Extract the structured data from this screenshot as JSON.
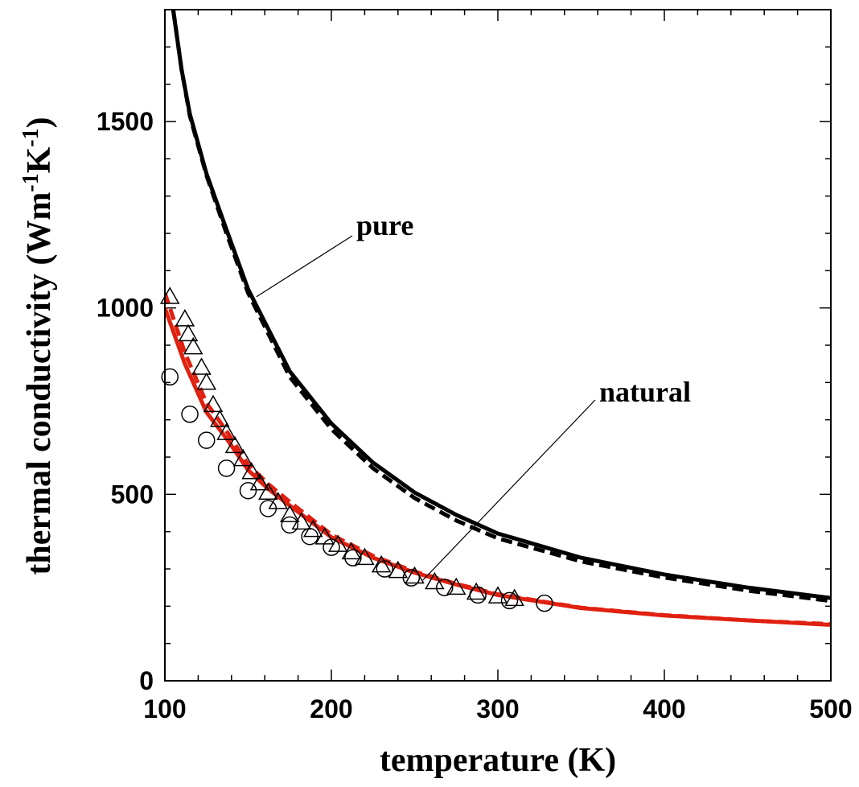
{
  "chart_data": {
    "type": "line",
    "xlabel": "temperature (K)",
    "ylabel": {
      "parts": [
        {
          "text": "thermal conductivity (Wm",
          "sup": false
        },
        {
          "text": "-1",
          "sup": true
        },
        {
          "text": "K",
          "sup": false
        },
        {
          "text": "-1",
          "sup": true
        },
        {
          "text": ")",
          "sup": false
        }
      ]
    },
    "xlim": [
      100,
      500
    ],
    "ylim": [
      0,
      1800
    ],
    "xticks": [
      100,
      200,
      300,
      400,
      500
    ],
    "yticks": [
      0,
      500,
      1000,
      1500
    ],
    "grid": false,
    "annotations": [
      {
        "text": "pure",
        "points_to": [
          155,
          1030
        ]
      },
      {
        "text": "natural",
        "points_to": [
          255,
          270
        ]
      }
    ],
    "series": [
      {
        "color": "#000000",
        "dash": false,
        "role": "pure",
        "x": [
          105,
          110,
          115,
          125,
          137,
          150,
          175,
          200,
          225,
          250,
          275,
          300,
          350,
          400,
          450,
          500
        ],
        "y": [
          1800,
          1640,
          1520,
          1360,
          1210,
          1050,
          830,
          690,
          585,
          505,
          445,
          395,
          330,
          285,
          250,
          222
        ]
      },
      {
        "color": "#000000",
        "dash": true,
        "role": "pure",
        "x": [
          105,
          110,
          115,
          125,
          137,
          150,
          175,
          200,
          225,
          250,
          275,
          300,
          350,
          400,
          450,
          500
        ],
        "y": [
          1800,
          1640,
          1515,
          1355,
          1200,
          1040,
          815,
          675,
          570,
          490,
          430,
          382,
          320,
          277,
          242,
          214
        ]
      },
      {
        "color": "#e02010",
        "dash": false,
        "role": "natural",
        "x": [
          100,
          112,
          125,
          137,
          150,
          162,
          175,
          200,
          225,
          250,
          275,
          300,
          350,
          400,
          450,
          500
        ],
        "y": [
          1000,
          850,
          720,
          650,
          565,
          515,
          470,
          385,
          330,
          290,
          258,
          230,
          195,
          175,
          162,
          150
        ]
      },
      {
        "color": "#e02010",
        "dash": true,
        "role": "natural",
        "x": [
          100,
          112,
          125,
          137,
          150,
          162,
          175,
          200,
          225,
          250,
          275,
          300,
          350,
          400,
          450,
          500
        ],
        "y": [
          1040,
          880,
          745,
          670,
          580,
          528,
          480,
          392,
          335,
          293,
          260,
          232,
          196,
          176,
          162,
          152
        ]
      }
    ],
    "markers": [
      {
        "shape": "triangle",
        "x": [
          103,
          112,
          114,
          117,
          122,
          125,
          129,
          133,
          137,
          142,
          147,
          152,
          157,
          162,
          168,
          175,
          182,
          189,
          196,
          204,
          212,
          220,
          230,
          240,
          250,
          262,
          275,
          287,
          300,
          310
        ],
        "y": [
          1030,
          970,
          930,
          895,
          840,
          800,
          740,
          700,
          665,
          630,
          595,
          560,
          530,
          505,
          480,
          445,
          425,
          405,
          385,
          365,
          345,
          330,
          310,
          295,
          280,
          265,
          250,
          237,
          227,
          220
        ]
      },
      {
        "shape": "circle",
        "x": [
          103,
          115,
          125,
          137,
          150,
          162,
          175,
          187,
          200,
          213,
          232,
          248,
          268,
          288,
          307,
          328
        ],
        "y": [
          815,
          715,
          645,
          570,
          510,
          462,
          418,
          387,
          358,
          330,
          300,
          276,
          250,
          230,
          215,
          208
        ]
      }
    ]
  }
}
